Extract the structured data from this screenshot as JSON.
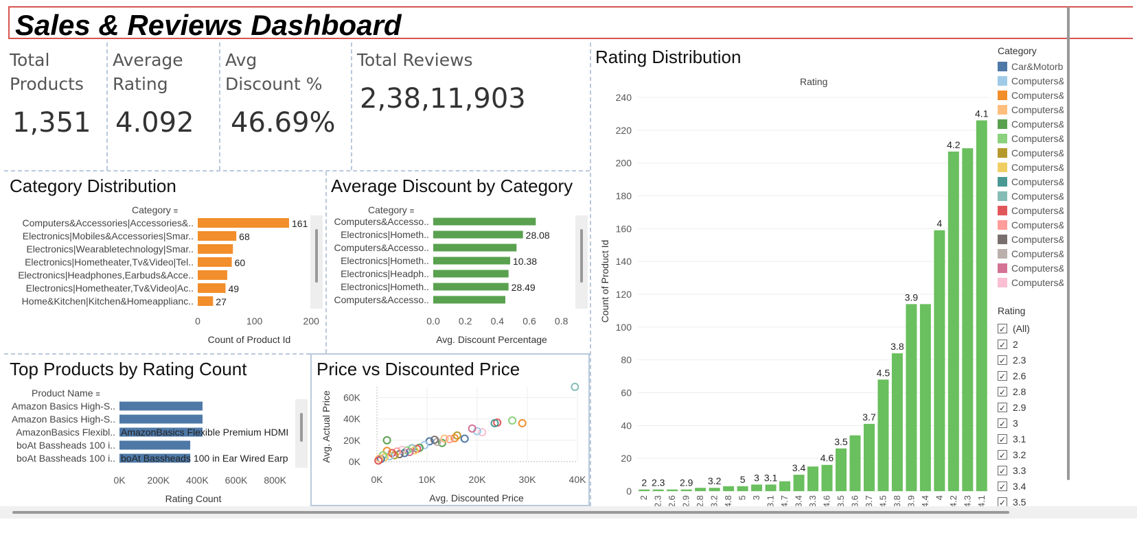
{
  "title": "Sales & Reviews Dashboard",
  "kpis": [
    {
      "label_line1": "Total",
      "label_line2": "Products",
      "value": "1,351"
    },
    {
      "label_line1": "Average",
      "label_line2": "Rating",
      "value": "4.092"
    },
    {
      "label_line1": "Avg",
      "label_line2": "Discount %",
      "value": "46.69%"
    },
    {
      "label_line1": "Total Reviews",
      "label_line2": "",
      "value": "2,38,11,903"
    }
  ],
  "category_distribution": {
    "title": "Category Distribution",
    "header": "Category",
    "xlabel": "Count of Product Id",
    "ticks": [
      "0",
      "100",
      "200"
    ],
    "colors": {
      "bar": "#f28e2b"
    }
  },
  "average_discount": {
    "title": "Average Discount by Category",
    "header": "Category",
    "xlabel": "Avg. Discount Percentage",
    "ticks": [
      "0.0",
      "0.2",
      "0.4",
      "0.6",
      "0.8"
    ],
    "colors": {
      "bar": "#59a14f"
    }
  },
  "top_products": {
    "title": "Top Products by Rating Count",
    "header": "Product Name",
    "xlabel": "Rating Count",
    "ticks": [
      "0K",
      "200K",
      "400K",
      "600K",
      "800K"
    ],
    "colors": {
      "bar": "#4e79a7"
    }
  },
  "price_scatter": {
    "title": "Price vs Discounted Price",
    "xlabel": "Avg. Discounted Price",
    "ylabel": "Avg. Actual Price",
    "xticks": [
      "0K",
      "10K",
      "20K",
      "30K",
      "40K"
    ],
    "yticks": [
      "0K",
      "20K",
      "40K",
      "60K"
    ]
  },
  "rating_distribution": {
    "title": "Rating Distribution",
    "header": "Rating",
    "ylabel": "Count of Product Id",
    "colors": {
      "bar": "#6abf5e"
    }
  },
  "legend": {
    "title": "Category",
    "items": [
      {
        "label": "Car&Motorbike",
        "color": "#4e79a7"
      },
      {
        "label": "Computers&Accessories",
        "color": "#a0cbe8"
      },
      {
        "label": "Computers&Accessories",
        "color": "#f28e2b"
      },
      {
        "label": "Computers&Accessories",
        "color": "#ffbe7d"
      },
      {
        "label": "Computers&Accessories",
        "color": "#59a14f"
      },
      {
        "label": "Computers&Accessories",
        "color": "#8cd17d"
      },
      {
        "label": "Computers&Accessories",
        "color": "#b6992d"
      },
      {
        "label": "Computers&Accessories",
        "color": "#f1ce63"
      },
      {
        "label": "Computers&Accessories",
        "color": "#499894"
      },
      {
        "label": "Computers&Accessories",
        "color": "#86bcb6"
      },
      {
        "label": "Computers&Accessories",
        "color": "#e15759"
      },
      {
        "label": "Computers&Accessories",
        "color": "#ff9d9a"
      },
      {
        "label": "Computers&Accessories",
        "color": "#79706e"
      },
      {
        "label": "Computers&Accessories",
        "color": "#bab0ac"
      },
      {
        "label": "Computers&Accessories",
        "color": "#d37295"
      },
      {
        "label": "Computers&Accessories",
        "color": "#fabfd2"
      }
    ]
  },
  "rating_filter": {
    "title": "Rating",
    "items": [
      "(All)",
      "2",
      "2.3",
      "2.6",
      "2.8",
      "2.9",
      "3",
      "3.1",
      "3.2",
      "3.3",
      "3.4",
      "3.5"
    ]
  },
  "chart_data": [
    {
      "type": "bar",
      "orientation": "horizontal",
      "title": "Category Distribution",
      "xlabel": "Count of Product Id",
      "categories": [
        "Computers&Accessories|Accessories&..",
        "Electronics|Mobiles&Accessories|Smar..",
        "Electronics|Wearabletechnology|Smar..",
        "Electronics|Hometheater,Tv&Video|Tel..",
        "Electronics|Headphones,Earbuds&Acce..",
        "Electronics|Hometheater,Tv&Video|Ac..",
        "Home&Kitchen|Kitchen&Homeapplianc.."
      ],
      "values": [
        161,
        68,
        62,
        60,
        52,
        49,
        27
      ],
      "labels": [
        "161",
        "68",
        "",
        "60",
        "",
        "49",
        "27"
      ],
      "xlim": [
        0,
        230
      ]
    },
    {
      "type": "bar",
      "orientation": "horizontal",
      "title": "Average Discount by Category",
      "xlabel": "Avg. Discount Percentage",
      "categories": [
        "Computers&Accesso..",
        "Electronics|Hometh..",
        "Computers&Accesso..",
        "Electronics|Hometh..",
        "Electronics|Headph..",
        "Electronics|Hometh..",
        "Computers&Accesso.."
      ],
      "values": [
        0.64,
        0.56,
        0.52,
        0.48,
        0.47,
        0.47,
        0.45
      ],
      "labels": [
        "",
        "28.08",
        "",
        "10.38",
        "",
        "28.49",
        ""
      ],
      "xlim": [
        0,
        0.9
      ]
    },
    {
      "type": "bar",
      "orientation": "horizontal",
      "title": "Top Products by Rating Count",
      "xlabel": "Rating Count",
      "categories": [
        "Amazon Basics High-S..",
        "Amazon Basics High-S..",
        "AmazonBasics Flexibl..",
        "boAt Bassheads 100 i..",
        "boAt Bassheads 100 i.."
      ],
      "values": [
        426973,
        426973,
        426973,
        363713,
        363713
      ],
      "labels": [
        "",
        "",
        "AmazonBasics Flexible Premium HDMI",
        "",
        "boAt Bassheads 100 in Ear Wired Earp"
      ],
      "xlim": [
        0,
        900000
      ]
    },
    {
      "type": "scatter",
      "title": "Price vs Discounted Price",
      "xlabel": "Avg. Discounted Price",
      "ylabel": "Avg. Actual Price",
      "xlim": [
        0,
        40000
      ],
      "ylim": [
        0,
        70000
      ],
      "points": [
        {
          "x": 39500,
          "y": 70000,
          "color": "#86bcb6"
        },
        {
          "x": 29000,
          "y": 36000,
          "color": "#f28e2b"
        },
        {
          "x": 27000,
          "y": 38500,
          "color": "#8cd17d"
        },
        {
          "x": 24000,
          "y": 36500,
          "color": "#e15759"
        },
        {
          "x": 23500,
          "y": 36000,
          "color": "#499894"
        },
        {
          "x": 21000,
          "y": 27500,
          "color": "#fabfd2"
        },
        {
          "x": 20000,
          "y": 28500,
          "color": "#a0cbe8"
        },
        {
          "x": 19000,
          "y": 31000,
          "color": "#d37295"
        },
        {
          "x": 17500,
          "y": 21500,
          "color": "#4e79a7"
        },
        {
          "x": 16000,
          "y": 24500,
          "color": "#b6992d"
        },
        {
          "x": 15500,
          "y": 22000,
          "color": "#f28e2b"
        },
        {
          "x": 14500,
          "y": 21000,
          "color": "#ff9d9a"
        },
        {
          "x": 13000,
          "y": 17500,
          "color": "#59a14f"
        },
        {
          "x": 13500,
          "y": 21500,
          "color": "#ffbe7d"
        },
        {
          "x": 12000,
          "y": 18500,
          "color": "#bab0ac"
        },
        {
          "x": 11500,
          "y": 20500,
          "color": "#79706e"
        },
        {
          "x": 10500,
          "y": 19000,
          "color": "#4e79a7"
        },
        {
          "x": 9500,
          "y": 15500,
          "color": "#a0cbe8"
        },
        {
          "x": 8500,
          "y": 13000,
          "color": "#59a14f"
        },
        {
          "x": 8000,
          "y": 12000,
          "color": "#e15759"
        },
        {
          "x": 7500,
          "y": 10500,
          "color": "#f1ce63"
        },
        {
          "x": 7000,
          "y": 12500,
          "color": "#86bcb6"
        },
        {
          "x": 6500,
          "y": 9000,
          "color": "#d37295"
        },
        {
          "x": 6000,
          "y": 10500,
          "color": "#8cd17d"
        },
        {
          "x": 5500,
          "y": 8000,
          "color": "#4e79a7"
        },
        {
          "x": 5000,
          "y": 11000,
          "color": "#fabfd2"
        },
        {
          "x": 4500,
          "y": 7000,
          "color": "#79706e"
        },
        {
          "x": 4000,
          "y": 9500,
          "color": "#ff9d9a"
        },
        {
          "x": 3500,
          "y": 6000,
          "color": "#b6992d"
        },
        {
          "x": 3000,
          "y": 8000,
          "color": "#e15759"
        },
        {
          "x": 2500,
          "y": 5000,
          "color": "#a0cbe8"
        },
        {
          "x": 2000,
          "y": 20000,
          "color": "#59a14f"
        },
        {
          "x": 2000,
          "y": 10000,
          "color": "#f28e2b"
        },
        {
          "x": 1500,
          "y": 4000,
          "color": "#f1ce63"
        },
        {
          "x": 1200,
          "y": 6000,
          "color": "#8cd17d"
        },
        {
          "x": 800,
          "y": 2500,
          "color": "#4e79a7"
        },
        {
          "x": 500,
          "y": 3000,
          "color": "#ffbe7d"
        },
        {
          "x": 300,
          "y": 1000,
          "color": "#e15759"
        }
      ]
    },
    {
      "type": "bar",
      "title": "Rating Distribution",
      "xlabel": "Rating",
      "ylabel": "Count of Product Id",
      "categories": [
        "2",
        "2.3",
        "2.6",
        "2.9",
        "2.8",
        "3.2",
        "4.8",
        "5",
        "3",
        "3.1",
        "4.7",
        "3.4",
        "3.3",
        "4.6",
        "3.5",
        "3.6",
        "3.7",
        "4.5",
        "3.8",
        "3.9",
        "4.4",
        "4",
        "4.2",
        "4.3",
        "4.1"
      ],
      "values": [
        1,
        1,
        1,
        1,
        2,
        2,
        3,
        3,
        4,
        4,
        6,
        10,
        15,
        16,
        26,
        34,
        41,
        68,
        84,
        114,
        114,
        159,
        207,
        209,
        226
      ],
      "labels": [
        "2",
        "2.3",
        "",
        "2.9",
        "",
        "3.2",
        "",
        "5",
        "3",
        "3.1",
        "",
        "3.4",
        "",
        "4.6",
        "3.5",
        "",
        "3.7",
        "4.5",
        "3.8",
        "3.9",
        "",
        "4",
        "4.2",
        "",
        "4.1"
      ],
      "tick_labels": [
        "2",
        "2.3",
        "2.6",
        "2.9",
        "2.8",
        "3.2",
        "4.8",
        "5",
        "3",
        "3.1",
        "4.7",
        "3.4",
        "3.3",
        "4.6",
        "3.5",
        "3.6",
        "3.7",
        "4.5",
        "3.8",
        "3.9",
        "4.4",
        "4",
        "4.2",
        "4.3",
        "4.1"
      ],
      "yticks": [
        0,
        20,
        40,
        60,
        80,
        100,
        120,
        140,
        160,
        180,
        200,
        220,
        240
      ],
      "ylim": [
        0,
        240
      ],
      "grid": true
    }
  ]
}
